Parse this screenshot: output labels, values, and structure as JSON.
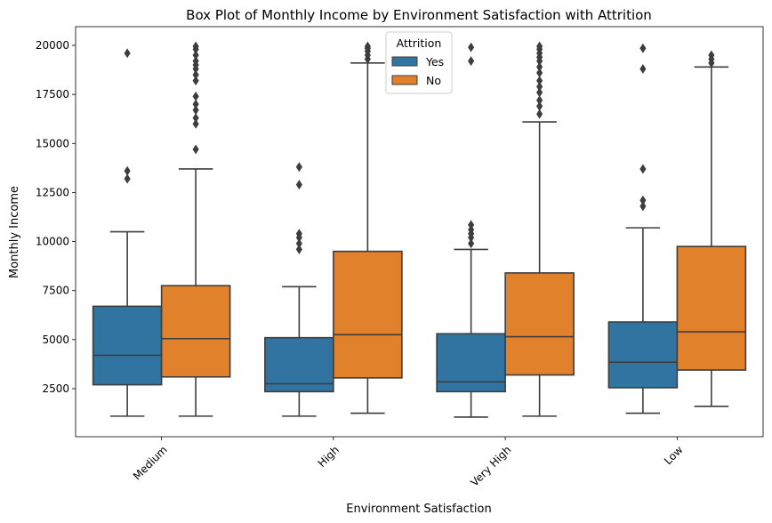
{
  "chart_data": {
    "type": "box",
    "title": "Box Plot of Monthly Income by Environment Satisfaction with Attrition",
    "xlabel": "Environment Satisfaction",
    "ylabel": "Monthly Income",
    "categories": [
      "Medium",
      "High",
      "Very High",
      "Low"
    ],
    "ylim": [
      0,
      21000
    ],
    "yticks": [
      2500,
      5000,
      7500,
      10000,
      12500,
      15000,
      17500,
      20000
    ],
    "legend": {
      "title": "Attrition",
      "placement": "top-center"
    },
    "colors": {
      "Yes": "#3274a1",
      "No": "#e1812c",
      "line": "#3d3d3d"
    },
    "series": [
      {
        "name": "Yes",
        "boxes": [
          {
            "whisker_low": 1100,
            "q1": 2700,
            "median": 4200,
            "q3": 6700,
            "whisker_high": 10500,
            "outliers": [
              13200,
              13600,
              19600
            ]
          },
          {
            "whisker_low": 1100,
            "q1": 2350,
            "median": 2750,
            "q3": 5100,
            "whisker_high": 7700,
            "outliers": [
              9600,
              9900,
              10200,
              10400,
              12900,
              13800
            ]
          },
          {
            "whisker_low": 1050,
            "q1": 2350,
            "median": 2850,
            "q3": 5300,
            "whisker_high": 9600,
            "outliers": [
              9900,
              10200,
              10400,
              10600,
              10850,
              19200,
              19900
            ]
          },
          {
            "whisker_low": 1250,
            "q1": 2550,
            "median": 3850,
            "q3": 5900,
            "whisker_high": 10700,
            "outliers": [
              11800,
              12100,
              13700,
              18800,
              19850
            ]
          }
        ]
      },
      {
        "name": "No",
        "boxes": [
          {
            "whisker_low": 1100,
            "q1": 3100,
            "median": 5050,
            "q3": 7750,
            "whisker_high": 13700,
            "outliers": [
              14700,
              16000,
              16300,
              16700,
              17000,
              17400,
              18200,
              18500,
              18800,
              19000,
              19200,
              19500,
              19800,
              19950
            ]
          },
          {
            "whisker_low": 1250,
            "q1": 3050,
            "median": 5250,
            "q3": 9500,
            "whisker_high": 19100,
            "outliers": [
              19300,
              19500,
              19700,
              19850,
              19950
            ]
          },
          {
            "whisker_low": 1100,
            "q1": 3200,
            "median": 5150,
            "q3": 8400,
            "whisker_high": 16100,
            "outliers": [
              16500,
              16900,
              17200,
              17600,
              17900,
              18200,
              18600,
              18900,
              19200,
              19400,
              19600,
              19800,
              19950
            ]
          },
          {
            "whisker_low": 1600,
            "q1": 3450,
            "median": 5400,
            "q3": 9750,
            "whisker_high": 18900,
            "outliers": [
              19100,
              19300,
              19500
            ]
          }
        ]
      }
    ]
  }
}
